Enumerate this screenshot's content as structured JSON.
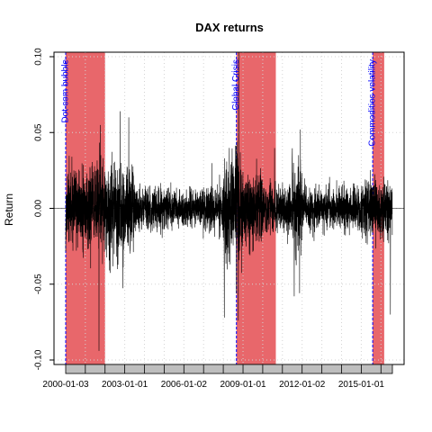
{
  "chart_data": {
    "type": "line",
    "title": "DAX returns",
    "xlabel": "",
    "ylabel": "Return",
    "x_range": [
      "2000-01-03",
      "2016-07-31"
    ],
    "ylim": [
      -0.1,
      0.1
    ],
    "x_tick_labels": [
      "2000-01-03",
      "2003-01-01",
      "2006-01-02",
      "2009-01-01",
      "2012-01-02",
      "2015-01-01"
    ],
    "x_tick_dates": [
      "2000-01-03",
      "2003-01-01",
      "2006-01-02",
      "2009-01-01",
      "2012-01-02",
      "2015-01-01"
    ],
    "y_ticks": [
      -0.1,
      -0.05,
      0.0,
      0.05,
      0.1
    ],
    "y_tick_labels": [
      "-0.10",
      "-0.05",
      "0.00",
      "0.05",
      "0.10"
    ],
    "grid": true,
    "horizontal_reference_line": 0.0,
    "series": [
      {
        "name": "DAX",
        "volatility_profile": [
          {
            "start": "2000-01-03",
            "end": "2000-12-31",
            "std": 0.016
          },
          {
            "start": "2001-01-01",
            "end": "2001-12-31",
            "std": 0.018
          },
          {
            "start": "2002-01-01",
            "end": "2002-12-31",
            "std": 0.022
          },
          {
            "start": "2003-01-01",
            "end": "2003-06-30",
            "std": 0.021
          },
          {
            "start": "2003-07-01",
            "end": "2004-12-31",
            "std": 0.01
          },
          {
            "start": "2005-01-01",
            "end": "2006-12-31",
            "std": 0.008
          },
          {
            "start": "2007-01-01",
            "end": "2007-12-31",
            "std": 0.01
          },
          {
            "start": "2008-01-01",
            "end": "2008-12-31",
            "std": 0.024
          },
          {
            "start": "2009-01-01",
            "end": "2009-12-31",
            "std": 0.016
          },
          {
            "start": "2010-01-01",
            "end": "2011-06-30",
            "std": 0.01
          },
          {
            "start": "2011-07-01",
            "end": "2011-12-31",
            "std": 0.021
          },
          {
            "start": "2012-01-01",
            "end": "2014-12-31",
            "std": 0.009
          },
          {
            "start": "2015-01-01",
            "end": "2016-07-31",
            "std": 0.013
          }
        ],
        "extremes": [
          {
            "date": "2001-09-11",
            "value": -0.094
          },
          {
            "date": "2001-10-05",
            "value": 0.055
          },
          {
            "date": "2002-10-10",
            "value": 0.064
          },
          {
            "date": "2003-03-17",
            "value": 0.06
          },
          {
            "date": "2008-10-13",
            "value": 0.108
          },
          {
            "date": "2008-10-06",
            "value": -0.074
          },
          {
            "date": "2008-01-21",
            "value": -0.072
          },
          {
            "date": "2011-08-08",
            "value": -0.058
          },
          {
            "date": "2011-11-30",
            "value": 0.052
          },
          {
            "date": "2016-06-24",
            "value": -0.07
          }
        ]
      }
    ],
    "events": [
      {
        "name": "Dot-com bubble",
        "start": "2000-01-03",
        "end": "2002-01-01",
        "fill": "#E8676B",
        "label_color": "#0000FF"
      },
      {
        "name": "Global Crisis",
        "start": "2008-09-01",
        "end": "2010-09-01",
        "fill": "#E8676B",
        "label_color": "#0000FF"
      },
      {
        "name": "Commodities volatility",
        "start": "2015-08-01",
        "end": "2016-03-01",
        "fill": "#E8676B",
        "label_color": "#0000FF"
      }
    ],
    "colors": {
      "line": "#000000",
      "event_fill": "#E8676B",
      "event_edge": "#0000FF",
      "event_label": "#0000FF",
      "grid": "#D3D3D3",
      "date_bar": "#BEBEBE"
    }
  }
}
